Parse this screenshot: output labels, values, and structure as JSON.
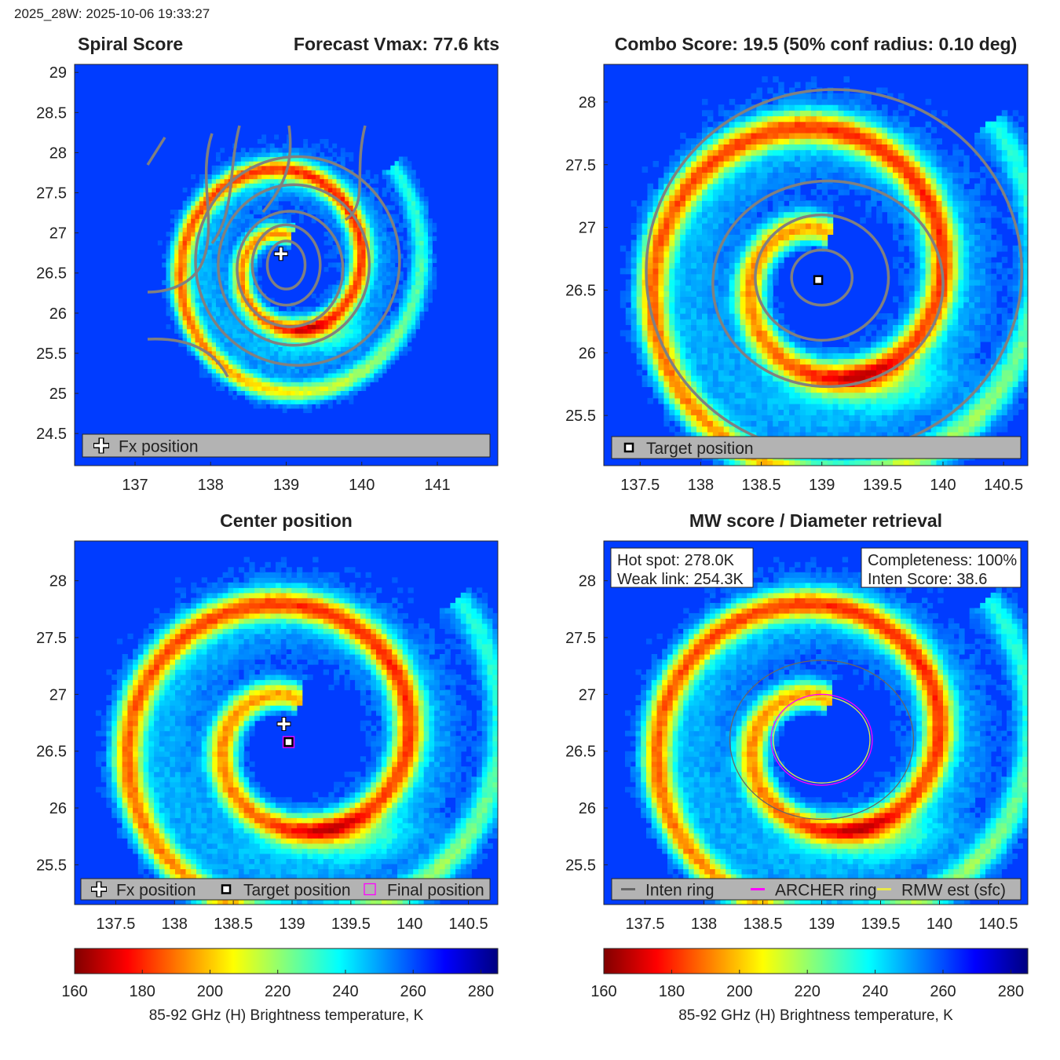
{
  "header": "2025_28W: 2025-10-06 19:33:27",
  "chart_data": [
    {
      "type": "heatmap",
      "panel": "spiral-score",
      "title_left": "Spiral Score",
      "title_right": "Forecast Vmax: 77.6 kts",
      "xlim": [
        136.2,
        141.8
      ],
      "ylim": [
        24.1,
        29.1
      ],
      "xticks": [
        137,
        138,
        139,
        140,
        141
      ],
      "yticks": [
        24.5,
        25,
        25.5,
        26,
        26.5,
        27,
        27.5,
        28,
        28.5,
        29
      ],
      "center": {
        "lon": 139.0,
        "lat": 26.6
      },
      "markers": {
        "fx": {
          "lon": 138.93,
          "lat": 26.74
        }
      },
      "legend": [
        "Fx position"
      ]
    },
    {
      "type": "heatmap",
      "panel": "combo-score",
      "title": "Combo Score: 19.5  (50% conf radius: 0.10 deg)",
      "xlim": [
        137.2,
        140.7
      ],
      "ylim": [
        25.1,
        28.3
      ],
      "xticks": [
        137.5,
        138,
        138.5,
        139,
        139.5,
        140,
        140.5
      ],
      "yticks": [
        25.5,
        26,
        26.5,
        27,
        27.5,
        28
      ],
      "center": {
        "lon": 139.0,
        "lat": 26.6
      },
      "markers": {
        "target": {
          "lon": 138.97,
          "lat": 26.58
        }
      },
      "legend": [
        "Target position"
      ]
    },
    {
      "type": "heatmap",
      "panel": "center-position",
      "title": "Center position",
      "xlim": [
        137.15,
        140.75
      ],
      "ylim": [
        25.15,
        28.35
      ],
      "xticks": [
        137.5,
        138,
        138.5,
        139,
        139.5,
        140,
        140.5
      ],
      "yticks": [
        25.5,
        26,
        26.5,
        27,
        27.5,
        28
      ],
      "center": {
        "lon": 139.0,
        "lat": 26.6
      },
      "markers": {
        "fx": {
          "lon": 138.93,
          "lat": 26.74
        },
        "target": {
          "lon": 138.97,
          "lat": 26.58
        },
        "final": {
          "lon": 138.97,
          "lat": 26.58
        }
      },
      "legend": [
        "Fx position",
        "Target position",
        "Final position"
      ]
    },
    {
      "type": "heatmap",
      "panel": "mw-score",
      "title": "MW score / Diameter retrieval",
      "xlim": [
        137.15,
        140.75
      ],
      "ylim": [
        25.15,
        28.35
      ],
      "xticks": [
        137.5,
        138,
        138.5,
        139,
        139.5,
        140,
        140.5
      ],
      "yticks": [
        25.5,
        26,
        26.5,
        27,
        27.5,
        28
      ],
      "center": {
        "lon": 139.0,
        "lat": 26.6
      },
      "info_left": [
        "Hot spot: 278.0K",
        "Weak link: 254.3K"
      ],
      "info_right": [
        "Completeness: 100%",
        "Inten Score: 38.6"
      ],
      "rings": [
        {
          "name": "Inten ring",
          "color": "#666666",
          "rx_deg": 0.78,
          "ry_deg": 0.7
        },
        {
          "name": "ARCHER ring",
          "color": "#ff00ff",
          "rx_deg": 0.43,
          "ry_deg": 0.4
        },
        {
          "name": "RMW est (sfc)",
          "color": "#e8e84a",
          "rx_deg": 0.41,
          "ry_deg": 0.38
        }
      ],
      "legend": [
        "Inten ring",
        "ARCHER ring",
        "RMW est (sfc)"
      ]
    }
  ],
  "colorbar": {
    "min": 160,
    "max": 285,
    "ticks": [
      160,
      180,
      200,
      220,
      240,
      260,
      280
    ],
    "label": "85-92 GHz (H) Brightness temperature, K",
    "colormap": "jet-reversed"
  }
}
